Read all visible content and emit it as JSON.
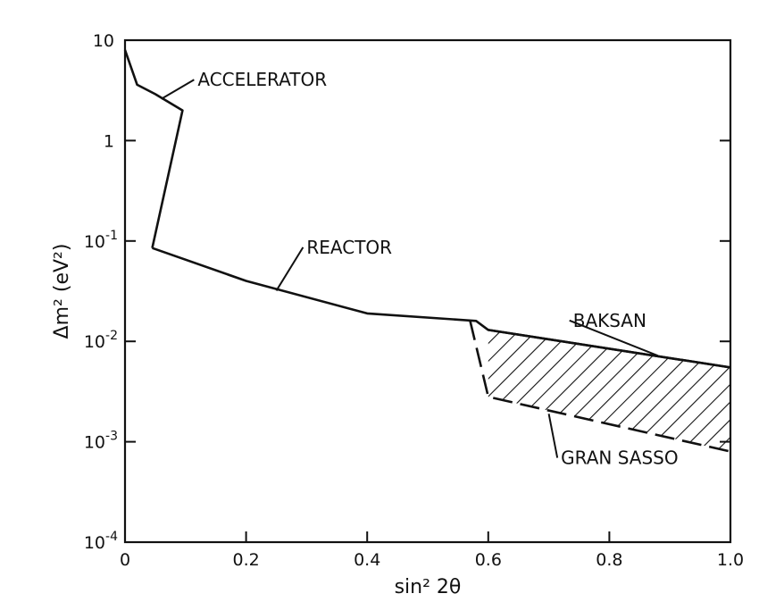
{
  "chart_data": {
    "type": "line",
    "xlabel": "sin² 2θ",
    "ylabel": "Δm² (eV²)",
    "xlim": [
      0,
      1.0
    ],
    "ylim": [
      0.0001,
      10
    ],
    "yscale": "log",
    "grid": false,
    "x_ticks": [
      {
        "value": 0,
        "label": "0"
      },
      {
        "value": 0.2,
        "label": "0.2"
      },
      {
        "value": 0.4,
        "label": "0.4"
      },
      {
        "value": 0.6,
        "label": "0.6"
      },
      {
        "value": 0.8,
        "label": "0.8"
      },
      {
        "value": 1.0,
        "label": "1.0"
      }
    ],
    "y_ticks": [
      {
        "value": 10,
        "base": "10",
        "exp": ""
      },
      {
        "value": 1,
        "base": "1",
        "exp": ""
      },
      {
        "value": 0.1,
        "base": "10",
        "exp": "-1"
      },
      {
        "value": 0.01,
        "base": "10",
        "exp": "-2"
      },
      {
        "value": 0.001,
        "base": "10",
        "exp": "-3"
      },
      {
        "value": 0.0001,
        "base": "10",
        "exp": "-4"
      }
    ],
    "series": [
      {
        "name": "ACCELERATOR",
        "style": "solid",
        "x": [
          0.0,
          0.02,
          0.05,
          0.095,
          0.045
        ],
        "y": [
          8.0,
          3.6,
          2.9,
          2.0,
          0.085
        ]
      },
      {
        "name": "REACTOR",
        "style": "solid",
        "x": [
          0.045,
          0.2,
          0.4,
          0.58,
          0.6,
          1.0
        ],
        "y": [
          0.085,
          0.04,
          0.019,
          0.016,
          0.013,
          0.0055
        ]
      },
      {
        "name": "BAKSAN",
        "style": "solid",
        "x": [
          0.6,
          1.0
        ],
        "y": [
          0.013,
          0.0055
        ]
      },
      {
        "name": "GRAN SASSO",
        "style": "dashed",
        "x": [
          0.57,
          0.6,
          1.0
        ],
        "y": [
          0.016,
          0.0028,
          0.0008
        ]
      }
    ],
    "shaded_region": {
      "label": "BAKSAN",
      "pattern": "diagonal-hatch",
      "upper": {
        "x": [
          0.6,
          1.0
        ],
        "y": [
          0.013,
          0.0055
        ]
      },
      "lower": {
        "x": [
          0.6,
          1.0
        ],
        "y": [
          0.0028,
          0.0008
        ]
      }
    },
    "annotations": [
      {
        "text": "ACCELERATOR",
        "x": 0.12,
        "y": 3.5,
        "point_x": 0.06,
        "point_y": 2.6
      },
      {
        "text": "REACTOR",
        "x": 0.3,
        "y": 0.075,
        "point_x": 0.25,
        "point_y": 0.032
      },
      {
        "text": "BAKSAN",
        "x": 0.74,
        "y": 0.014,
        "point_x": 0.88,
        "point_y": 0.0072
      },
      {
        "text": "GRAN SASSO",
        "x": 0.72,
        "y": 0.0006,
        "point_x": 0.7,
        "point_y": 0.0019
      }
    ]
  }
}
